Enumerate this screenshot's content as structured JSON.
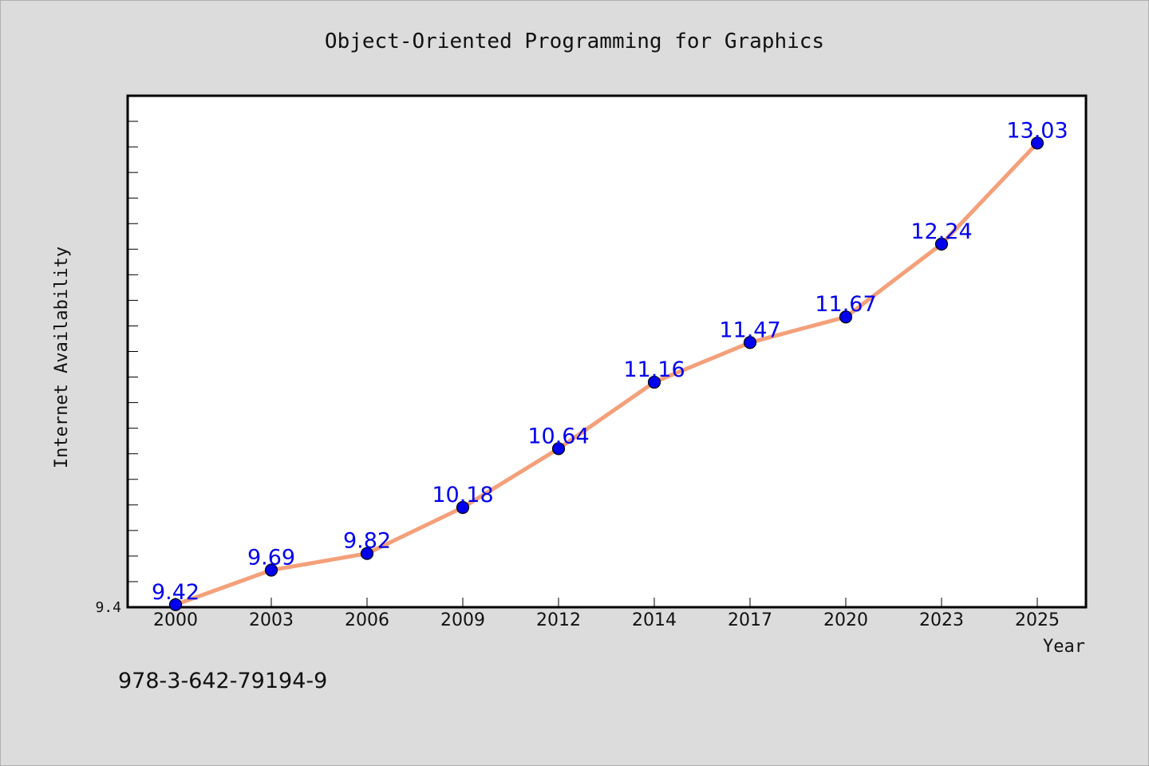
{
  "chart_data": {
    "type": "line",
    "title": "Object-Oriented Programming for Graphics",
    "xlabel": "Year",
    "ylabel": "Internet Availability",
    "categories": [
      "2000",
      "2003",
      "2006",
      "2009",
      "2012",
      "2014",
      "2017",
      "2020",
      "2023",
      "2025"
    ],
    "values": [
      9.42,
      9.69,
      9.82,
      10.18,
      10.64,
      11.16,
      11.47,
      11.67,
      12.24,
      13.03
    ],
    "ylim": [
      9.4,
      13.4
    ],
    "y_tick_labels": [
      "9.4"
    ],
    "grid": false,
    "legend": "none",
    "line_color": "#f4a07a",
    "marker_color": "#0000ee",
    "label_color": "#0000ee",
    "footnote": "978-3-642-79194-9"
  }
}
